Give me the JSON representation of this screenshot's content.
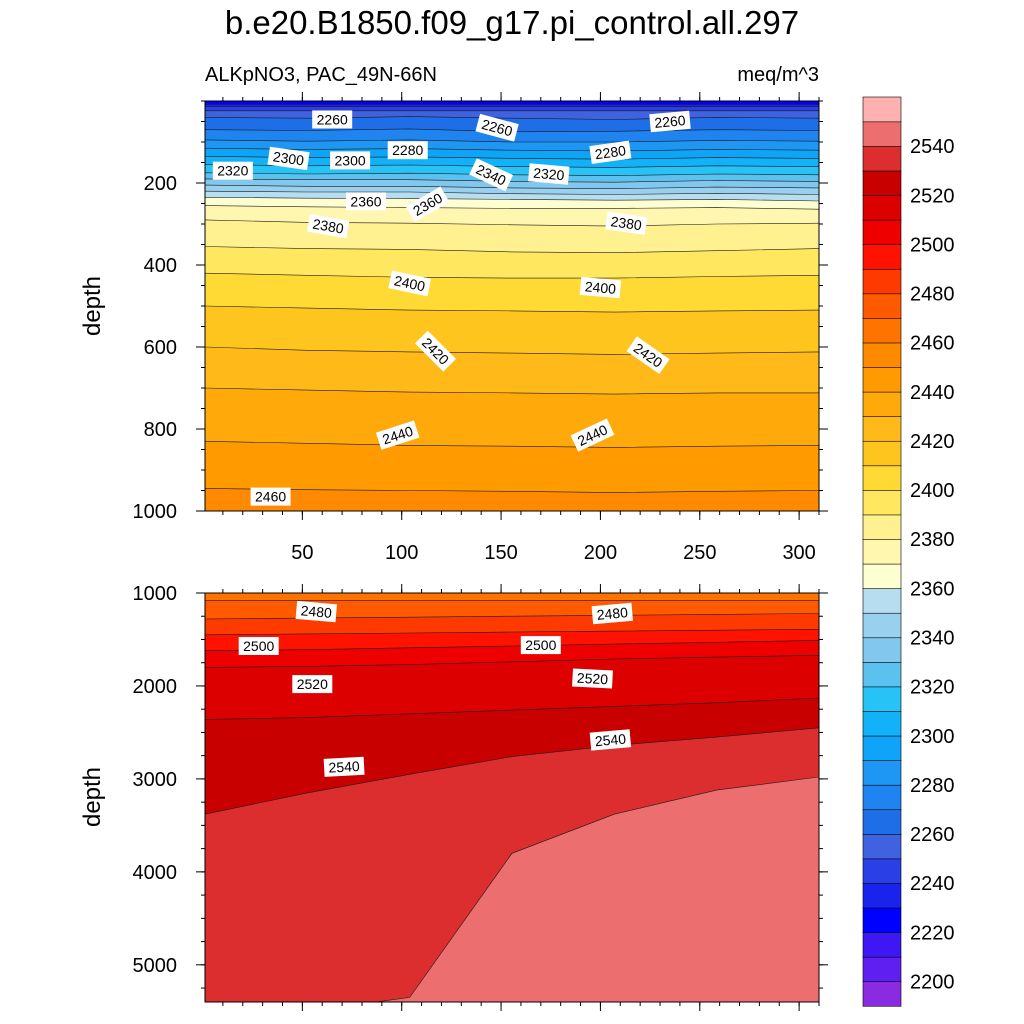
{
  "figure": {
    "title": "b.e20.B1850.f09_g17.pi_control.all.297",
    "left_string": "ALKpNO3, PAC_49N-66N",
    "right_string": "meq/m^3"
  },
  "chart_data": {
    "type": "contour",
    "variable": "ALKpNO3",
    "units": "meq/m^3",
    "region": "PAC_49N-66N",
    "x_range": [
      1,
      310
    ],
    "x_ticks": [
      50,
      100,
      150,
      200,
      250,
      300
    ],
    "colorbar": {
      "levels": [
        2200,
        2210,
        2220,
        2230,
        2240,
        2250,
        2260,
        2270,
        2280,
        2290,
        2300,
        2310,
        2320,
        2330,
        2340,
        2350,
        2360,
        2370,
        2380,
        2390,
        2400,
        2410,
        2420,
        2430,
        2440,
        2450,
        2460,
        2470,
        2480,
        2490,
        2500,
        2510,
        2520,
        2530,
        2540,
        2550
      ],
      "labeled_levels": [
        2200,
        2220,
        2240,
        2260,
        2280,
        2300,
        2320,
        2340,
        2360,
        2380,
        2400,
        2420,
        2440,
        2460,
        2480,
        2500,
        2520,
        2540
      ],
      "colors": [
        "#8a2be2",
        "#5f1ff0",
        "#3d18f5",
        "#0000ff",
        "#1a23ee",
        "#2a40e6",
        "#3f62e0",
        "#1e6ee8",
        "#1f84f0",
        "#1e96f4",
        "#0ea4f8",
        "#13b2f8",
        "#28c3f6",
        "#5bc2f0",
        "#82c7ee",
        "#99d0ee",
        "#b6def0",
        "#feffd0",
        "#fff6b0",
        "#fff090",
        "#ffe860",
        "#ffd934",
        "#ffc51f",
        "#ffba1a",
        "#ffaa0a",
        "#ff9a00",
        "#ff8a00",
        "#ff7400",
        "#ff5a00",
        "#ff3a00",
        "#ff1200",
        "#ee0000",
        "#dd0000",
        "#c80000",
        "#dc2e2e",
        "#ec6e6e",
        "#ffb0b0"
      ]
    },
    "panels": [
      {
        "name": "upper",
        "ylabel": "depth",
        "y_range": [
          0,
          1000
        ],
        "y_inverted": true,
        "y_ticks": [
          200,
          400,
          600,
          800,
          1000
        ],
        "layers": [
          {
            "level": 2220,
            "top": [
              0,
              0,
              0,
              0,
              0,
              0,
              0
            ]
          },
          {
            "level": 2230,
            "top": [
              8,
              8,
              8,
              8,
              8,
              8,
              8
            ]
          },
          {
            "level": 2240,
            "top": [
              14,
              14,
              14,
              14,
              14,
              14,
              14
            ]
          },
          {
            "level": 2250,
            "top": [
              24,
              24,
              24,
              24,
              24,
              24,
              24
            ]
          },
          {
            "level": 2260,
            "top": [
              40,
              42,
              38,
              42,
              45,
              40,
              42
            ]
          },
          {
            "level": 2270,
            "top": [
              70,
              72,
              68,
              75,
              74,
              70,
              72
            ]
          },
          {
            "level": 2280,
            "top": [
              95,
              98,
              95,
              100,
              100,
              96,
              98
            ]
          },
          {
            "level": 2290,
            "top": [
              115,
              118,
              116,
              120,
              122,
              118,
              120
            ]
          },
          {
            "level": 2300,
            "top": [
              135,
              138,
              136,
              140,
              142,
              138,
              140
            ]
          },
          {
            "level": 2310,
            "top": [
              155,
              158,
              156,
              160,
              162,
              158,
              160
            ]
          },
          {
            "level": 2320,
            "top": [
              175,
              178,
              176,
              180,
              182,
              178,
              180
            ]
          },
          {
            "level": 2330,
            "top": [
              190,
              192,
              192,
              196,
              198,
              194,
              196
            ]
          },
          {
            "level": 2340,
            "top": [
              205,
              208,
              208,
              212,
              214,
              210,
              212
            ]
          },
          {
            "level": 2350,
            "top": [
              220,
              222,
              222,
              226,
              228,
              225,
              228
            ]
          },
          {
            "level": 2360,
            "top": [
              235,
              237,
              238,
              240,
              242,
              240,
              244
            ]
          },
          {
            "level": 2370,
            "top": [
              255,
              258,
              260,
              262,
              262,
              260,
              264
            ]
          },
          {
            "level": 2380,
            "top": [
              290,
              296,
              298,
              302,
              305,
              300,
              298
            ]
          },
          {
            "level": 2390,
            "top": [
              355,
              360,
              362,
              368,
              370,
              365,
              360
            ]
          },
          {
            "level": 2400,
            "top": [
              420,
              425,
              430,
              432,
              432,
              428,
              425
            ]
          },
          {
            "level": 2410,
            "top": [
              500,
              505,
              510,
              512,
              515,
              512,
              510
            ]
          },
          {
            "level": 2420,
            "top": [
              600,
              608,
              612,
              615,
              618,
              615,
              612
            ]
          },
          {
            "level": 2430,
            "top": [
              700,
              705,
              710,
              712,
              715,
              712,
              712
            ]
          },
          {
            "level": 2440,
            "top": [
              830,
              835,
              840,
              842,
              845,
              842,
              840
            ]
          },
          {
            "level": 2450,
            "top": [
              945,
              948,
              950,
              952,
              955,
              952,
              950
            ]
          }
        ],
        "contour_labels": [
          {
            "text": "2260",
            "x": 65,
            "y": 45,
            "angle": 0
          },
          {
            "text": "2260",
            "x": 148,
            "y": 65,
            "angle": 15
          },
          {
            "text": "2260",
            "x": 235,
            "y": 50,
            "angle": -5
          },
          {
            "text": "2280",
            "x": 103,
            "y": 120,
            "angle": 0
          },
          {
            "text": "2280",
            "x": 205,
            "y": 125,
            "angle": -8
          },
          {
            "text": "2300",
            "x": 43,
            "y": 140,
            "angle": 8
          },
          {
            "text": "2300",
            "x": 74,
            "y": 145,
            "angle": 0
          },
          {
            "text": "2320",
            "x": 15,
            "y": 170,
            "angle": 0
          },
          {
            "text": "2320",
            "x": 174,
            "y": 178,
            "angle": 5
          },
          {
            "text": "2340",
            "x": 145,
            "y": 180,
            "angle": 25
          },
          {
            "text": "2360",
            "x": 82,
            "y": 245,
            "angle": 0
          },
          {
            "text": "2360",
            "x": 113,
            "y": 252,
            "angle": -30
          },
          {
            "text": "2380",
            "x": 63,
            "y": 305,
            "angle": 10
          },
          {
            "text": "2380",
            "x": 213,
            "y": 298,
            "angle": 8
          },
          {
            "text": "2400",
            "x": 104,
            "y": 445,
            "angle": 12
          },
          {
            "text": "2400",
            "x": 200,
            "y": 455,
            "angle": 5
          },
          {
            "text": "2420",
            "x": 117,
            "y": 610,
            "angle": 45
          },
          {
            "text": "2420",
            "x": 224,
            "y": 620,
            "angle": 35
          },
          {
            "text": "2440",
            "x": 98,
            "y": 815,
            "angle": -18
          },
          {
            "text": "2440",
            "x": 196,
            "y": 815,
            "angle": -25
          },
          {
            "text": "2460",
            "x": 34,
            "y": 965,
            "angle": 0
          }
        ]
      },
      {
        "name": "lower",
        "ylabel": "depth",
        "y_range": [
          1000,
          5400
        ],
        "y_inverted": true,
        "y_ticks": [
          1000,
          2000,
          3000,
          4000,
          5000
        ],
        "layers": [
          {
            "level": 2460,
            "top": [
              1000,
              1000,
              1000,
              1000,
              1000,
              1000,
              1000
            ]
          },
          {
            "level": 2470,
            "top": [
              1080,
              1080,
              1080,
              1080,
              1080,
              1080,
              1080
            ]
          },
          {
            "level": 2480,
            "top": [
              1280,
              1270,
              1260,
              1250,
              1240,
              1230,
              1220
            ]
          },
          {
            "level": 2490,
            "top": [
              1450,
              1440,
              1430,
              1420,
              1410,
              1400,
              1390
            ]
          },
          {
            "level": 2500,
            "top": [
              1620,
              1610,
              1590,
              1570,
              1550,
              1530,
              1510
            ]
          },
          {
            "level": 2510,
            "top": [
              1800,
              1790,
              1770,
              1740,
              1710,
              1690,
              1670
            ]
          },
          {
            "level": 2520,
            "top": [
              2360,
              2340,
              2300,
              2260,
              2220,
              2180,
              2130
            ]
          },
          {
            "level": 2530,
            "top": [
              3380,
              3150,
              2950,
              2760,
              2640,
              2550,
              2450
            ]
          },
          {
            "level": 2540,
            "top": [
              5500,
              5500,
              5350,
              3800,
              3380,
              3120,
              2980
            ]
          }
        ],
        "contour_labels": [
          {
            "text": "2480",
            "x": 57,
            "y": 1200,
            "angle": 5
          },
          {
            "text": "2480",
            "x": 206,
            "y": 1220,
            "angle": -5
          },
          {
            "text": "2500",
            "x": 28,
            "y": 1570,
            "angle": 0
          },
          {
            "text": "2500",
            "x": 170,
            "y": 1560,
            "angle": 0
          },
          {
            "text": "2520",
            "x": 55,
            "y": 1980,
            "angle": 0
          },
          {
            "text": "2520",
            "x": 196,
            "y": 1920,
            "angle": 3
          },
          {
            "text": "2540",
            "x": 71,
            "y": 2870,
            "angle": -3
          },
          {
            "text": "2540",
            "x": 205,
            "y": 2580,
            "angle": -5
          }
        ]
      }
    ]
  }
}
